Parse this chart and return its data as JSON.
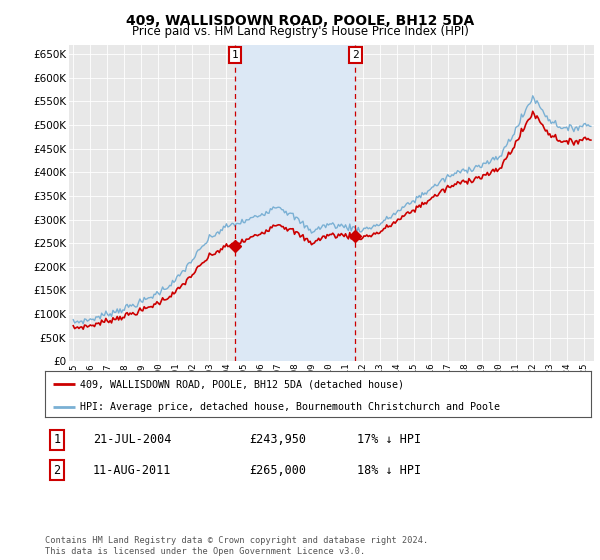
{
  "title": "409, WALLISDOWN ROAD, POOLE, BH12 5DA",
  "subtitle": "Price paid vs. HM Land Registry's House Price Index (HPI)",
  "ylim": [
    0,
    670000
  ],
  "yticks": [
    0,
    50000,
    100000,
    150000,
    200000,
    250000,
    300000,
    350000,
    400000,
    450000,
    500000,
    550000,
    600000,
    650000
  ],
  "background_color": "#ffffff",
  "plot_bg_color": "#e8e8e8",
  "shade_color": "#dce8f5",
  "grid_color": "#ffffff",
  "hpi_color": "#7ab0d4",
  "price_color": "#cc0000",
  "vline_color": "#cc0000",
  "sale1": {
    "label": "1",
    "date": "21-JUL-2004",
    "price": 243950,
    "pct": "17%"
  },
  "sale2": {
    "label": "2",
    "date": "11-AUG-2011",
    "price": 265000,
    "pct": "18%"
  },
  "legend_line1": "409, WALLISDOWN ROAD, POOLE, BH12 5DA (detached house)",
  "legend_line2": "HPI: Average price, detached house, Bournemouth Christchurch and Poole",
  "footnote": "Contains HM Land Registry data © Crown copyright and database right 2024.\nThis data is licensed under the Open Government Licence v3.0.",
  "hpi_annual": {
    "1995": 82000,
    "1996": 88000,
    "1997": 100000,
    "1998": 112000,
    "1999": 125000,
    "2000": 145000,
    "2001": 170000,
    "2002": 215000,
    "2003": 260000,
    "2004": 285000,
    "2005": 295000,
    "2006": 310000,
    "2007": 330000,
    "2008": 305000,
    "2009": 275000,
    "2010": 290000,
    "2011": 285000,
    "2012": 278000,
    "2013": 290000,
    "2014": 315000,
    "2015": 340000,
    "2016": 365000,
    "2017": 390000,
    "2018": 405000,
    "2019": 415000,
    "2020": 430000,
    "2021": 490000,
    "2022": 560000,
    "2023": 510000,
    "2024": 490000,
    "2025": 500000
  },
  "price_sale1": 243950,
  "price_sale2": 265000,
  "sale1_year": 2004,
  "sale1_month": 6,
  "sale2_year": 2011,
  "sale2_month": 7
}
